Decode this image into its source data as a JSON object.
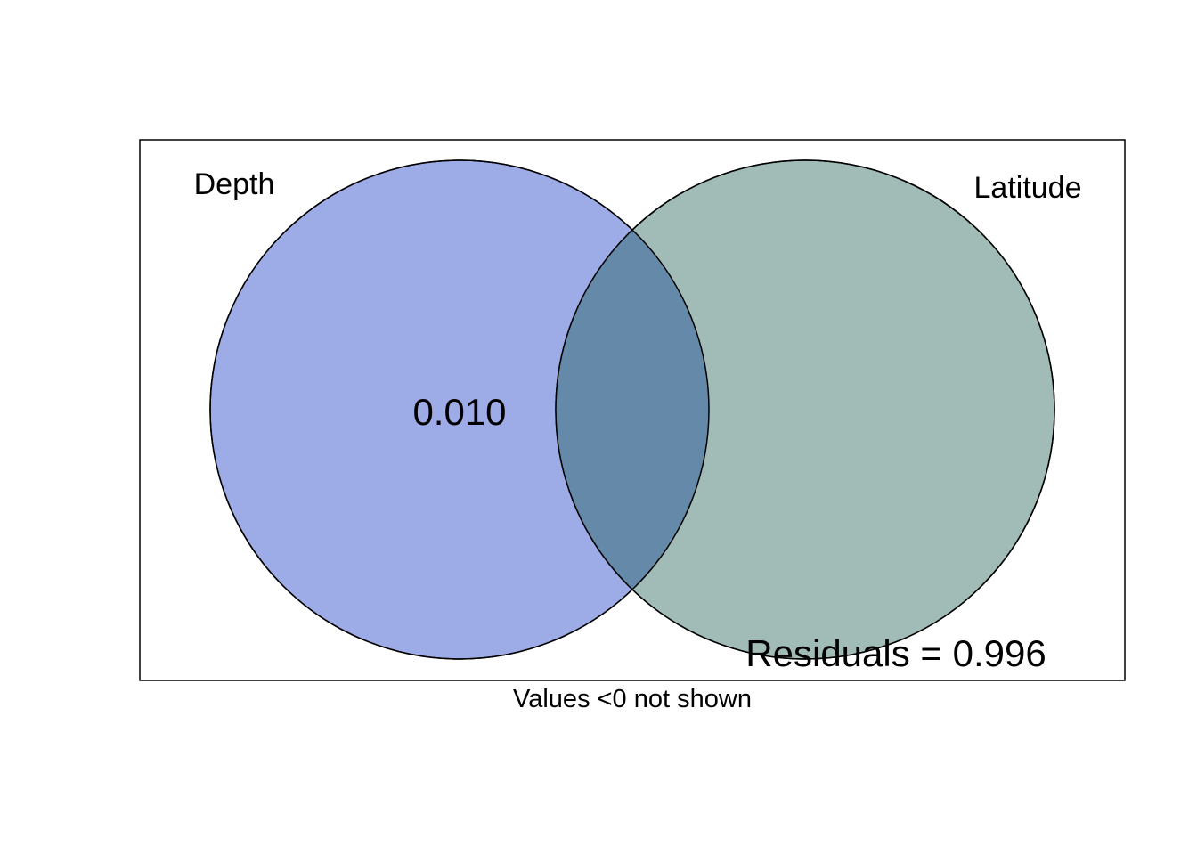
{
  "sets": [
    {
      "name": "Depth",
      "fill": "#9dabe6"
    },
    {
      "name": "Latitude",
      "fill": "#a1bbb6"
    }
  ],
  "overlap_fill": "#6489a9",
  "stroke_color": "#000000",
  "values": {
    "depth_only": "0.010"
  },
  "residuals": "Residuals = 0.996",
  "footnote": "Values <0 not shown"
}
